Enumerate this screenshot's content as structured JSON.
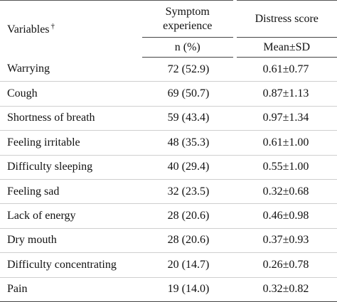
{
  "header": {
    "variables": "Variables",
    "variables_mark": "†",
    "symptom_experience": "Symptom experience",
    "distress_score": "Distress score",
    "n_pct": "n (%)",
    "mean_sd": "Mean±SD"
  },
  "table": {
    "rows": [
      [
        "Warrying",
        "72 (52.9)",
        "0.61±0.77"
      ],
      [
        "Cough",
        "69 (50.7)",
        "0.87±1.13"
      ],
      [
        "Shortness of breath",
        "59 (43.4)",
        "0.97±1.34"
      ],
      [
        "Feeling irritable",
        "48 (35.3)",
        "0.61±1.00"
      ],
      [
        "Difficulty sleeping",
        "40 (29.4)",
        "0.55±1.00"
      ],
      [
        "Feeling sad",
        "32 (23.5)",
        "0.32±0.68"
      ],
      [
        "Lack of energy",
        "28 (20.6)",
        "0.46±0.98"
      ],
      [
        "Dry mouth",
        "28 (20.6)",
        "0.37±0.93"
      ],
      [
        "Difficulty concentrating",
        "20 (14.7)",
        "0.26±0.78"
      ],
      [
        "Pain",
        "19 (14.0)",
        "0.32±0.82"
      ]
    ]
  }
}
